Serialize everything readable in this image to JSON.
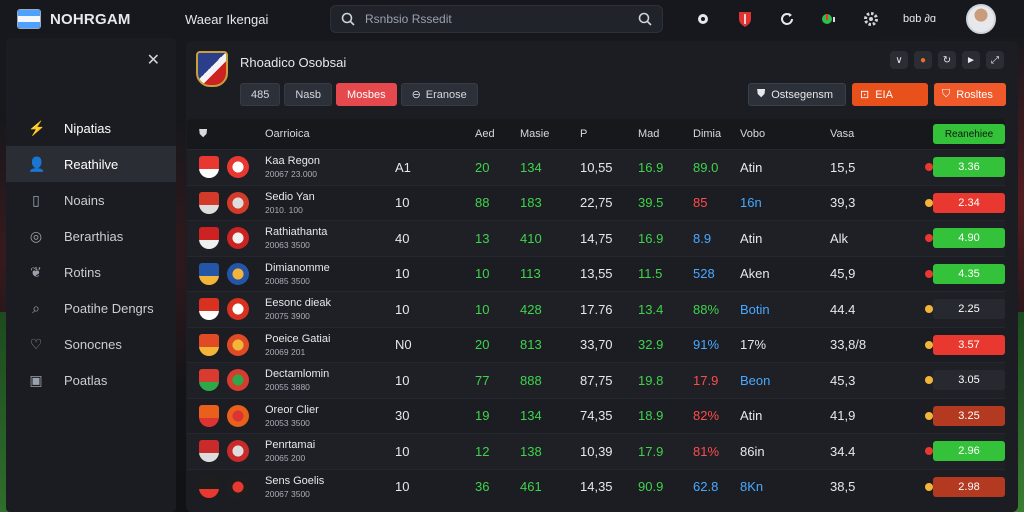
{
  "app": {
    "name": "NOHRGAM",
    "league": "Waear Ikengai"
  },
  "search": {
    "placeholder": "Rsnbsio Rssedit"
  },
  "topbar": {
    "status_text": "bɑb ∂ɑ"
  },
  "sidebar": {
    "items": [
      {
        "label": "Nipatias",
        "icon": "lightning-icon"
      },
      {
        "label": "Reathilve",
        "icon": "user-icon"
      },
      {
        "label": "Noains",
        "icon": "document-icon"
      },
      {
        "label": "Berarthias",
        "icon": "globe-icon"
      },
      {
        "label": "Rotins",
        "icon": "leaf-icon"
      },
      {
        "label": "Poatihe Dengrs",
        "icon": "search-icon"
      },
      {
        "label": "Sonocnes",
        "icon": "heart-icon"
      },
      {
        "label": "Poatlas",
        "icon": "box-icon"
      }
    ]
  },
  "match": {
    "title": "Rhoadico Osobsai",
    "chips": [
      "485",
      "Nasb",
      "Mosbes",
      "Eranose"
    ],
    "actions": {
      "ghost": "Ostsegensm",
      "orange": "EIA",
      "orange2": "Rosltes"
    }
  },
  "table": {
    "headers": {
      "team": "Oarrioica",
      "c2": "",
      "c3": "Aed",
      "c4": "Masie",
      "c5": "P",
      "c6": "Mad",
      "c7": "Dimia",
      "c8": "Vobo",
      "c9": "Vasa",
      "c10": "Reanehiee"
    },
    "rows": [
      {
        "name": "Kaa Regon",
        "sub": "20067 23.000",
        "c2": "A1",
        "c3": "20",
        "c4": "134",
        "c5": "10,55",
        "c6": "16.9",
        "c7": "89.0",
        "c8": "Atin",
        "c9": "15,5",
        "odds": "3.36",
        "odds_color": "green",
        "c3c": "g",
        "c4c": "g",
        "c6c": "g",
        "c7c": "g",
        "c8c": "w"
      },
      {
        "name": "Sedio Yan",
        "sub": "2010. 100",
        "c2": "10",
        "c3": "88",
        "c4": "183",
        "c5": "22,75",
        "c6": "39.5",
        "c7": "85",
        "c8": "16n",
        "c9": "39,3",
        "odds": "2.34",
        "odds_color": "red",
        "c3c": "g",
        "c4c": "g",
        "c6c": "g",
        "c7c": "r",
        "c8c": "b"
      },
      {
        "name": "Rathiathanta",
        "sub": "20063 3500",
        "c2": "40",
        "c3": "13",
        "c4": "410",
        "c5": "14,75",
        "c6": "16.9",
        "c7": "8.9",
        "c8": "Atin",
        "c9": "Alk",
        "odds": "4.90",
        "odds_color": "green",
        "c3c": "g",
        "c4c": "g",
        "c6c": "g",
        "c7c": "b",
        "c8c": "w"
      },
      {
        "name": "Dimianomme",
        "sub": "20085 3500",
        "c2": "10",
        "c3": "10",
        "c4": "113",
        "c5": "13,55",
        "c6": "11.5",
        "c7": "528",
        "c8": "Aken",
        "c9": "45,9",
        "odds": "4.35",
        "odds_color": "green",
        "c3c": "g",
        "c4c": "g",
        "c6c": "g",
        "c7c": "b",
        "c8c": "w"
      },
      {
        "name": "Eesonc dieak",
        "sub": "20075 3900",
        "c2": "10",
        "c3": "10",
        "c4": "428",
        "c5": "17.76",
        "c6": "13.4",
        "c7": "88%",
        "c8": "Botin",
        "c9": "44.4",
        "odds": "2.25",
        "odds_color": "dark",
        "c3c": "g",
        "c4c": "g",
        "c6c": "g",
        "c7c": "g",
        "c8c": "b"
      },
      {
        "name": "Poeice Gatiai",
        "sub": "20069 201",
        "c2": "N0",
        "c3": "20",
        "c4": "813",
        "c5": "33,70",
        "c6": "32.9",
        "c7": "91%",
        "c8": "17%",
        "c9": "33,8/8",
        "odds": "3.57",
        "odds_color": "red",
        "c3c": "g",
        "c4c": "g",
        "c6c": "g",
        "c7c": "b",
        "c8c": "w"
      },
      {
        "name": "Dectamlomin",
        "sub": "20055 3880",
        "c2": "10",
        "c3": "77",
        "c4": "888",
        "c5": "87,75",
        "c6": "19.8",
        "c7": "17.9",
        "c8": "Beon",
        "c9": "45,3",
        "odds": "3.05",
        "odds_color": "dark",
        "c3c": "g",
        "c4c": "g",
        "c6c": "g",
        "c7c": "r",
        "c8c": "b"
      },
      {
        "name": "Oreor Clier",
        "sub": "20053 3500",
        "c2": "30",
        "c3": "19",
        "c4": "134",
        "c5": "74,35",
        "c6": "18.9",
        "c7": "82%",
        "c8": "Atin",
        "c9": "41,9",
        "odds": "3.25",
        "odds_color": "brown",
        "c3c": "g",
        "c4c": "g",
        "c6c": "g",
        "c7c": "r",
        "c8c": "w"
      },
      {
        "name": "Penrtamai",
        "sub": "20065 200",
        "c2": "10",
        "c3": "12",
        "c4": "138",
        "c5": "10,39",
        "c6": "17.9",
        "c7": "81%",
        "c8": "86in",
        "c9": "34.4",
        "odds": "2.96",
        "odds_color": "green",
        "c3c": "g",
        "c4c": "g",
        "c6c": "g",
        "c7c": "r",
        "c8c": "w"
      },
      {
        "name": "Sens Goelis",
        "sub": "20067 3500",
        "c2": "10",
        "c3": "36",
        "c4": "461",
        "c5": "14,35",
        "c6": "90.9",
        "c7": "62.8",
        "c8": "8Kn",
        "c9": "38,5",
        "odds": "2.98",
        "odds_color": "brown",
        "c3c": "g",
        "c4c": "g",
        "c6c": "g",
        "c7c": "b",
        "c8c": "b"
      }
    ]
  }
}
